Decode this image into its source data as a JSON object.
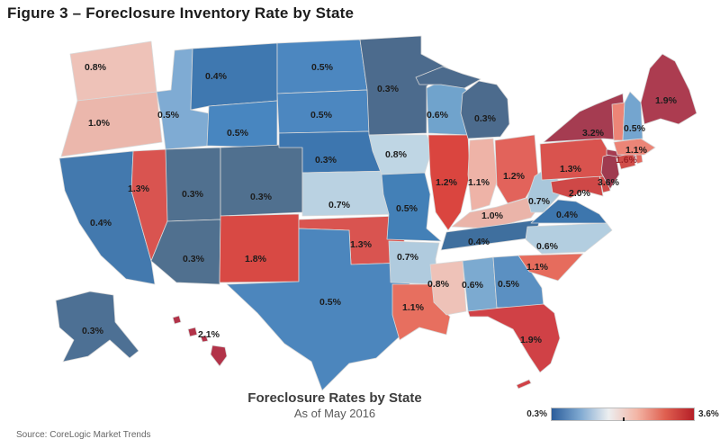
{
  "figure": {
    "title": "Figure 3 – Foreclosure Inventory Rate by State"
  },
  "map_caption": {
    "title": "Foreclosure Rates by State",
    "subtitle": "As of May 2016"
  },
  "legend": {
    "min_label": "0.3%",
    "max_label": "3.6%",
    "gradient": [
      "#2b5d9b",
      "#7fa9d1",
      "#eceef0",
      "#f3b5a5",
      "#df5f50",
      "#b51f27"
    ]
  },
  "footer": {
    "source": "Source: CoreLogic Market Trends"
  },
  "chart_data": {
    "type": "choropleth_map",
    "title": "Foreclosure Rates by State",
    "subtitle": "As of May 2016",
    "unit": "percent",
    "value_range": [
      0.3,
      3.6
    ],
    "label_color": "#1c1c1c",
    "states": [
      {
        "code": "WA",
        "name": "Washington",
        "value": 0.8,
        "label": "0.8%",
        "color": "#eec2b8"
      },
      {
        "code": "OR",
        "name": "Oregon",
        "value": 1.0,
        "label": "1.0%",
        "color": "#ebb7ac"
      },
      {
        "code": "CA",
        "name": "California",
        "value": 0.4,
        "label": "0.4%",
        "color": "#4379ae"
      },
      {
        "code": "NV",
        "name": "Nevada",
        "value": 1.3,
        "label": "1.3%",
        "color": "#d95450"
      },
      {
        "code": "ID",
        "name": "Idaho",
        "value": 0.5,
        "label": "0.5%",
        "color": "#7fabd3"
      },
      {
        "code": "MT",
        "name": "Montana",
        "value": 0.4,
        "label": "0.4%",
        "color": "#3f78b0"
      },
      {
        "code": "WY",
        "name": "Wyoming",
        "value": 0.5,
        "label": "0.5%",
        "color": "#4886c0"
      },
      {
        "code": "UT",
        "name": "Utah",
        "value": 0.3,
        "label": "0.3%",
        "color": "#50708f"
      },
      {
        "code": "CO",
        "name": "Colorado",
        "value": 0.3,
        "label": "0.3%",
        "color": "#50708f"
      },
      {
        "code": "AZ",
        "name": "Arizona",
        "value": 0.3,
        "label": "0.3%",
        "color": "#50708f"
      },
      {
        "code": "NM",
        "name": "New Mexico",
        "value": 1.8,
        "label": "1.8%",
        "color": "#d84944"
      },
      {
        "code": "ND",
        "name": "North Dakota",
        "value": 0.5,
        "label": "0.5%",
        "color": "#4c87c0"
      },
      {
        "code": "SD",
        "name": "South Dakota",
        "value": 0.5,
        "label": "0.5%",
        "color": "#4c87c0"
      },
      {
        "code": "NE",
        "name": "Nebraska",
        "value": 0.3,
        "label": "0.3%",
        "color": "#3d76af"
      },
      {
        "code": "KS",
        "name": "Kansas",
        "value": 0.7,
        "label": "0.7%",
        "color": "#bad2e2"
      },
      {
        "code": "OK",
        "name": "Oklahoma",
        "value": 1.3,
        "label": "1.3%",
        "color": "#d95450"
      },
      {
        "code": "TX",
        "name": "Texas",
        "value": 0.5,
        "label": "0.5%",
        "color": "#4c86bd"
      },
      {
        "code": "MN",
        "name": "Minnesota",
        "value": 0.3,
        "label": "0.3%",
        "color": "#4c6b8d"
      },
      {
        "code": "IA",
        "name": "Iowa",
        "value": 0.8,
        "label": "0.8%",
        "color": "#bfd6e4"
      },
      {
        "code": "MO",
        "name": "Missouri",
        "value": 0.5,
        "label": "0.5%",
        "color": "#4380b7"
      },
      {
        "code": "AR",
        "name": "Arkansas",
        "value": 0.7,
        "label": "0.7%",
        "color": "#b0cbde"
      },
      {
        "code": "LA",
        "name": "Louisiana",
        "value": 1.1,
        "label": "1.1%",
        "color": "#e76f5f"
      },
      {
        "code": "WI",
        "name": "Wisconsin",
        "value": 0.6,
        "label": "0.6%",
        "color": "#70a3cc"
      },
      {
        "code": "IL",
        "name": "Illinois",
        "value": 1.2,
        "label": "1.2%",
        "color": "#da453f"
      },
      {
        "code": "IN",
        "name": "Indiana",
        "value": 1.1,
        "label": "1.1%",
        "color": "#eeb3a7"
      },
      {
        "code": "MI",
        "name": "Michigan",
        "value": 0.3,
        "label": "0.3%",
        "color": "#4c6b8d"
      },
      {
        "code": "OH",
        "name": "Ohio",
        "value": 1.2,
        "label": "1.2%",
        "color": "#e2635b"
      },
      {
        "code": "KY",
        "name": "Kentucky",
        "value": 1.0,
        "label": "1.0%",
        "color": "#eab4a9"
      },
      {
        "code": "TN",
        "name": "Tennessee",
        "value": 0.4,
        "label": "0.4%",
        "color": "#3f6f9e"
      },
      {
        "code": "MS",
        "name": "Mississippi",
        "value": 0.8,
        "label": "0.8%",
        "color": "#eec2b8"
      },
      {
        "code": "AL",
        "name": "Alabama",
        "value": 0.6,
        "label": "0.6%",
        "color": "#7caad0"
      },
      {
        "code": "GA",
        "name": "Georgia",
        "value": 0.5,
        "label": "0.5%",
        "color": "#5b90c2"
      },
      {
        "code": "FL",
        "name": "Florida",
        "value": 1.9,
        "label": "1.9%",
        "color": "#d04146"
      },
      {
        "code": "SC",
        "name": "South Carolina",
        "value": 1.1,
        "label": "1.1%",
        "color": "#e66c5d"
      },
      {
        "code": "NC",
        "name": "North Carolina",
        "value": 0.6,
        "label": "0.6%",
        "color": "#b3cee0"
      },
      {
        "code": "VA",
        "name": "Virginia",
        "value": 0.4,
        "label": "0.4%",
        "color": "#3d76ad"
      },
      {
        "code": "WV",
        "name": "West Virginia",
        "value": 0.7,
        "label": "0.7%",
        "color": "#a9c7db"
      },
      {
        "code": "KY2",
        "name": "",
        "value": null,
        "label": "",
        "color": "#ffffff"
      },
      {
        "code": "MD",
        "name": "Maryland",
        "value": 2.0,
        "label": "2.0%",
        "color": "#cf4847"
      },
      {
        "code": "DE",
        "name": "Delaware",
        "value": null,
        "label": "",
        "color": "#d04a48"
      },
      {
        "code": "PA",
        "name": "Pennsylvania",
        "value": 1.3,
        "label": "1.3%",
        "color": "#d9534e"
      },
      {
        "code": "NJ",
        "name": "New Jersey",
        "value": 3.6,
        "label": "3.6%",
        "color": "#9f3a4f"
      },
      {
        "code": "NY",
        "name": "New York",
        "value": 3.2,
        "label": "3.2%",
        "color": "#a53c51"
      },
      {
        "code": "CT",
        "name": "Connecticut",
        "value": 1.6,
        "label": "1.6%",
        "color": "#d04d49",
        "label_color": "#9c2024"
      },
      {
        "code": "RI",
        "name": "Rhode Island",
        "value": null,
        "label": "",
        "color": "#e4695f"
      },
      {
        "code": "MA",
        "name": "Massachusetts",
        "value": 1.1,
        "label": "1.1%",
        "color": "#ec8577"
      },
      {
        "code": "VT",
        "name": "Vermont",
        "value": null,
        "label": "",
        "color": "#ec8577"
      },
      {
        "code": "NH",
        "name": "New Hampshire",
        "value": 0.5,
        "label": "0.5%",
        "color": "#74a5cf"
      },
      {
        "code": "ME",
        "name": "Maine",
        "value": 1.9,
        "label": "1.9%",
        "color": "#ac3c50"
      },
      {
        "code": "AK",
        "name": "Alaska",
        "value": 0.3,
        "label": "0.3%",
        "color": "#4d7094"
      },
      {
        "code": "HI",
        "name": "Hawaii",
        "value": 2.1,
        "label": "2.1%",
        "color": "#b23349"
      }
    ]
  }
}
